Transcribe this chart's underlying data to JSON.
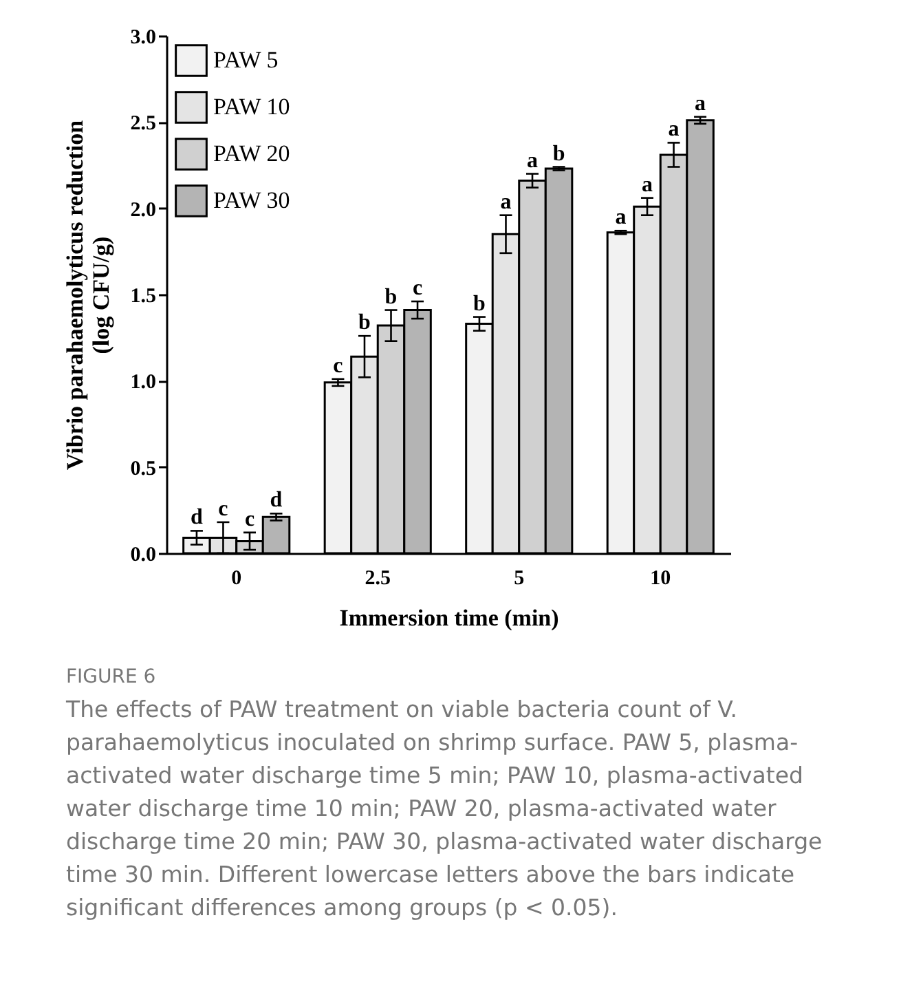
{
  "chart_data": {
    "type": "bar",
    "categories": [
      "0",
      "2.5",
      "5",
      "10"
    ],
    "xlabel": "Immersion time (min)",
    "ylabel": "Vibrio parahaemolyticus reduction\n(log CFU/g)",
    "ylim": [
      0,
      3
    ],
    "yticks": [
      {
        "value": 0,
        "label": "0.0"
      },
      {
        "value": 0.5,
        "label": "0.5"
      },
      {
        "value": 1,
        "label": "1.0"
      },
      {
        "value": 1.5,
        "label": "1.5"
      },
      {
        "value": 2,
        "label": "2.0"
      },
      {
        "value": 2.5,
        "label": "2.5"
      },
      {
        "value": 3,
        "label": "3.0"
      }
    ],
    "legend": "top left",
    "series": [
      {
        "name": "PAW 5",
        "color": "#f2f2f2",
        "values": [
          0.09,
          0.99,
          1.33,
          1.86
        ],
        "errors": [
          0.04,
          0.02,
          0.04,
          0.01
        ],
        "value_labels": [
          "d",
          "c",
          "b",
          "a"
        ]
      },
      {
        "name": "PAW 10",
        "color": "#e4e4e4",
        "values": [
          0.09,
          1.14,
          1.85,
          2.01
        ],
        "errors": [
          0.09,
          0.12,
          0.11,
          0.05
        ],
        "value_labels": [
          "c",
          "b",
          "a",
          "a"
        ]
      },
      {
        "name": "PAW 20",
        "color": "#d0d0d0",
        "values": [
          0.07,
          1.32,
          2.16,
          2.31
        ],
        "errors": [
          0.05,
          0.09,
          0.04,
          0.07
        ],
        "value_labels": [
          "c",
          "b",
          "a",
          "a"
        ]
      },
      {
        "name": "PAW 30",
        "color": "#b4b4b4",
        "values": [
          0.21,
          1.41,
          2.23,
          2.51
        ],
        "errors": [
          0.02,
          0.05,
          0.01,
          0.02
        ],
        "value_labels": [
          "d",
          "c",
          "b",
          "a"
        ]
      }
    ],
    "annotations": [
      "FIGURE 6",
      "The effects of PAW treatment on viable bacteria count of V. parahaemolyticus inoculated on shrimp surface. PAW 5, plasma-activated water discharge time 5 min; PAW 10, plasma-activated water discharge time 10 min; PAW 20, plasma-activated water discharge time 20 min; PAW 30, plasma-activated water discharge time 30 min. Different lowercase letters above the bars indicate significant differences among groups (p < 0.05)."
    ]
  }
}
